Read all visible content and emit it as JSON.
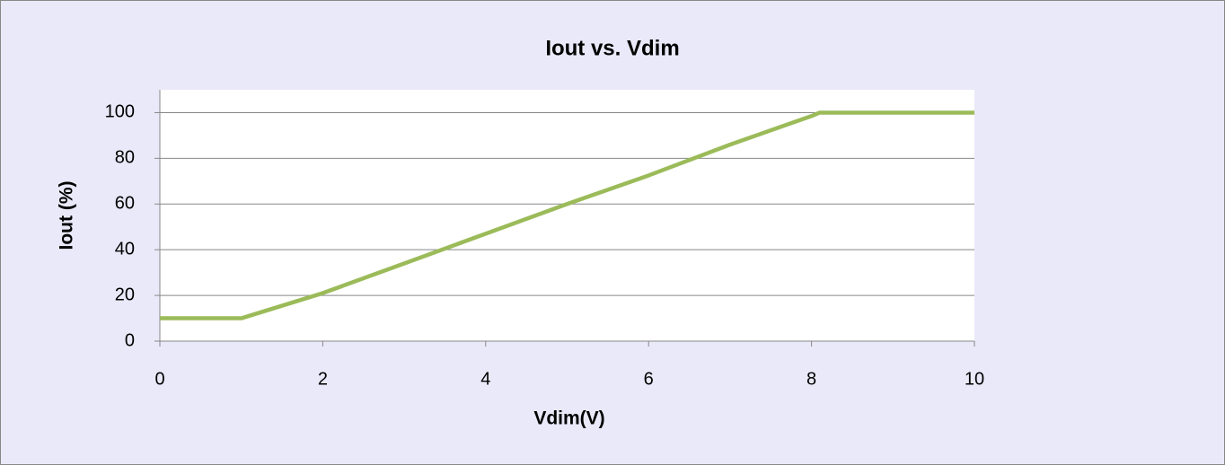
{
  "chart_data": {
    "type": "line",
    "title": "Iout vs. Vdim",
    "x_label": "Vdim(V)",
    "y_label": "Iout (%)",
    "x": [
      0,
      1,
      2,
      3,
      4,
      5,
      6,
      7,
      8,
      8.1,
      9,
      10
    ],
    "series": [
      {
        "name": "Iout",
        "color": "#9bbb59",
        "values": [
          10,
          10,
          21,
          34,
          47,
          60,
          72.5,
          86,
          98.5,
          100,
          100,
          100
        ]
      }
    ],
    "xlim": [
      0,
      10
    ],
    "xticks": [
      0,
      2,
      4,
      6,
      8,
      10
    ],
    "ylim": [
      0,
      110
    ],
    "yticks": [
      0,
      20,
      40,
      60,
      80,
      100
    ],
    "grid": true
  }
}
